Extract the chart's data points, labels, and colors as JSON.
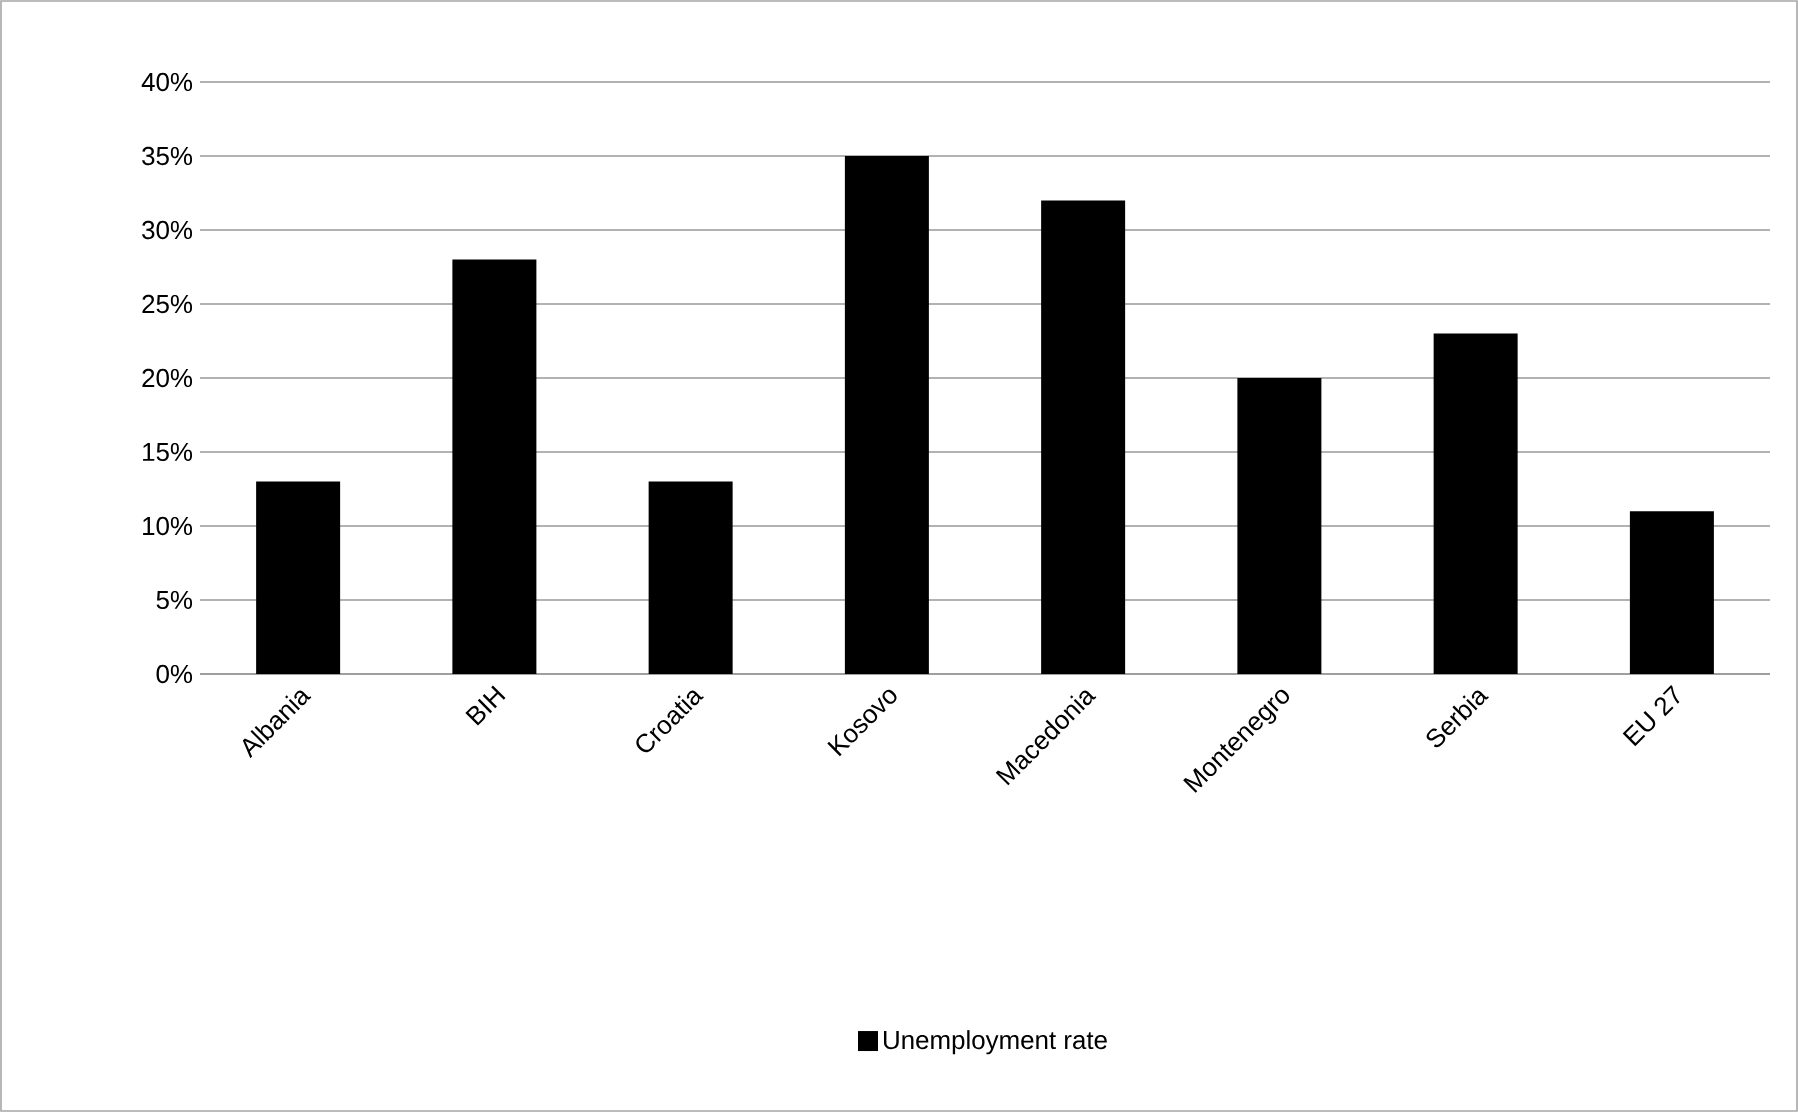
{
  "chart_data": {
    "type": "bar",
    "categories": [
      "Albania",
      "BIH",
      "Croatia",
      "Kosovo",
      "Macedonia",
      "Montenegro",
      "Serbia",
      "EU 27"
    ],
    "series": [
      {
        "name": "Unemployment rate",
        "color": "#000000",
        "values": [
          13,
          28,
          13,
          35,
          32,
          20,
          23,
          11
        ]
      }
    ],
    "ylim": [
      0,
      40
    ],
    "yticks": [
      {
        "value": 0,
        "label": "0%"
      },
      {
        "value": 5,
        "label": "5%"
      },
      {
        "value": 10,
        "label": "10%"
      },
      {
        "value": 15,
        "label": "15%"
      },
      {
        "value": 20,
        "label": "20%"
      },
      {
        "value": 25,
        "label": "25%"
      },
      {
        "value": 30,
        "label": "30%"
      },
      {
        "value": 35,
        "label": "35%"
      },
      {
        "value": 40,
        "label": "40%"
      }
    ],
    "grid": "y",
    "legend": "bottom"
  }
}
